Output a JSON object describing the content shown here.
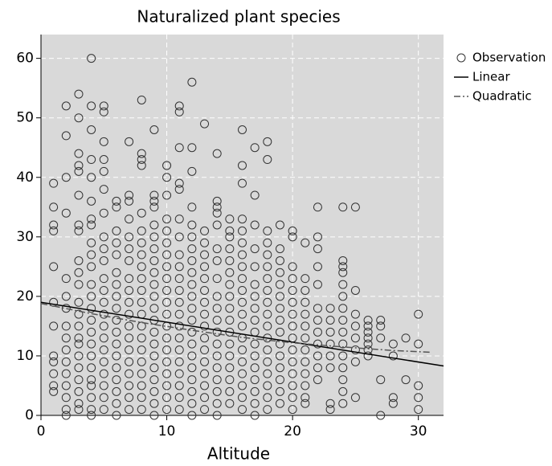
{
  "chart_data": {
    "type": "scatter",
    "title": "Naturalized plant species",
    "xlabel": "Altitude",
    "xlim": [
      0,
      32
    ],
    "ylim": [
      0,
      64
    ],
    "xticks": [
      0,
      10,
      20,
      30
    ],
    "yticks": [
      0,
      10,
      20,
      30,
      40,
      50,
      60
    ],
    "grid": true,
    "legend": "right",
    "background": "#d9d9d9",
    "series": [
      {
        "name": "Observation",
        "type": "scatter",
        "color": "#333333",
        "x": [
          1,
          1,
          1,
          1,
          1,
          1,
          1,
          1,
          1,
          1,
          1,
          1,
          2,
          2,
          2,
          2,
          2,
          2,
          2,
          2,
          2,
          2,
          2,
          2,
          2,
          2,
          2,
          2,
          3,
          3,
          3,
          3,
          3,
          3,
          3,
          3,
          3,
          3,
          3,
          3,
          3,
          3,
          3,
          3,
          3,
          3,
          3,
          3,
          3,
          3,
          4,
          4,
          4,
          4,
          4,
          4,
          4,
          4,
          4,
          4,
          4,
          4,
          4,
          4,
          4,
          4,
          4,
          4,
          4,
          4,
          4,
          4,
          4,
          4,
          5,
          5,
          5,
          5,
          5,
          5,
          5,
          5,
          5,
          5,
          5,
          5,
          5,
          5,
          5,
          5,
          5,
          5,
          5,
          5,
          5,
          5,
          6,
          6,
          6,
          6,
          6,
          6,
          6,
          6,
          6,
          6,
          6,
          6,
          6,
          6,
          6,
          6,
          6,
          6,
          7,
          7,
          7,
          7,
          7,
          7,
          7,
          7,
          7,
          7,
          7,
          7,
          7,
          7,
          7,
          7,
          7,
          7,
          7,
          8,
          8,
          8,
          8,
          8,
          8,
          8,
          8,
          8,
          8,
          8,
          8,
          8,
          8,
          8,
          8,
          8,
          8,
          8,
          8,
          8,
          9,
          9,
          9,
          9,
          9,
          9,
          9,
          9,
          9,
          9,
          9,
          9,
          9,
          9,
          9,
          9,
          9,
          9,
          9,
          9,
          9,
          10,
          10,
          10,
          10,
          10,
          10,
          10,
          10,
          10,
          10,
          10,
          10,
          10,
          10,
          10,
          10,
          10,
          10,
          10,
          10,
          11,
          11,
          11,
          11,
          11,
          11,
          11,
          11,
          11,
          11,
          11,
          11,
          11,
          11,
          11,
          11,
          11,
          11,
          11,
          11,
          11,
          12,
          12,
          12,
          12,
          12,
          12,
          12,
          12,
          12,
          12,
          12,
          12,
          12,
          12,
          12,
          12,
          12,
          12,
          12,
          12,
          12,
          13,
          13,
          13,
          13,
          13,
          13,
          13,
          13,
          13,
          13,
          13,
          13,
          13,
          13,
          13,
          13,
          13,
          14,
          14,
          14,
          14,
          14,
          14,
          14,
          14,
          14,
          14,
          14,
          14,
          14,
          14,
          14,
          14,
          14,
          14,
          14,
          15,
          15,
          15,
          15,
          15,
          15,
          15,
          15,
          15,
          15,
          15,
          15,
          15,
          15,
          15,
          15,
          15,
          16,
          16,
          16,
          16,
          16,
          16,
          16,
          16,
          16,
          16,
          16,
          16,
          16,
          16,
          16,
          16,
          16,
          16,
          16,
          16,
          17,
          17,
          17,
          17,
          17,
          17,
          17,
          17,
          17,
          17,
          17,
          17,
          17,
          17,
          17,
          17,
          17,
          18,
          18,
          18,
          18,
          18,
          18,
          18,
          18,
          18,
          18,
          18,
          18,
          18,
          18,
          18,
          18,
          18,
          18,
          19,
          19,
          19,
          19,
          19,
          19,
          19,
          19,
          19,
          19,
          19,
          19,
          19,
          19,
          19,
          20,
          20,
          20,
          20,
          20,
          20,
          20,
          20,
          20,
          20,
          20,
          20,
          20,
          20,
          20,
          21,
          21,
          21,
          21,
          21,
          21,
          21,
          21,
          21,
          21,
          21,
          21,
          21,
          22,
          22,
          22,
          22,
          22,
          22,
          22,
          22,
          22,
          22,
          22,
          22,
          23,
          23,
          23,
          23,
          23,
          23,
          23,
          23,
          24,
          24,
          24,
          24,
          24,
          24,
          24,
          24,
          24,
          24,
          24,
          24,
          24,
          24,
          24,
          25,
          25,
          25,
          25,
          25,
          25,
          25,
          25,
          26,
          26,
          26,
          26,
          26,
          26,
          26,
          27,
          27,
          27,
          27,
          27,
          28,
          28,
          28,
          28,
          29,
          29,
          30,
          30,
          30,
          30,
          30
        ],
        "values": [
          39,
          35,
          32,
          31,
          25,
          19,
          15,
          10,
          9,
          7,
          5,
          4,
          52,
          47,
          40,
          34,
          23,
          20,
          18,
          15,
          13,
          11,
          9,
          7,
          5,
          3,
          1,
          0,
          54,
          50,
          44,
          42,
          41,
          37,
          32,
          31,
          26,
          24,
          22,
          19,
          17,
          15,
          13,
          12,
          10,
          8,
          6,
          4,
          2,
          1,
          60,
          52,
          48,
          43,
          40,
          36,
          33,
          32,
          29,
          27,
          25,
          22,
          20,
          18,
          16,
          14,
          12,
          10,
          8,
          6,
          5,
          3,
          1,
          0,
          52,
          51,
          46,
          43,
          41,
          38,
          34,
          30,
          28,
          26,
          23,
          21,
          19,
          17,
          15,
          13,
          11,
          9,
          7,
          5,
          3,
          1,
          36,
          35,
          31,
          29,
          27,
          24,
          22,
          20,
          18,
          16,
          14,
          12,
          10,
          8,
          6,
          4,
          2,
          0,
          46,
          37,
          36,
          33,
          30,
          28,
          26,
          23,
          21,
          19,
          17,
          15,
          13,
          11,
          9,
          7,
          5,
          3,
          1,
          53,
          44,
          43,
          42,
          34,
          31,
          29,
          27,
          25,
          23,
          21,
          19,
          17,
          15,
          13,
          11,
          9,
          7,
          5,
          3,
          1,
          48,
          37,
          36,
          35,
          32,
          30,
          28,
          26,
          24,
          22,
          20,
          18,
          16,
          14,
          12,
          10,
          8,
          6,
          4,
          2,
          0,
          42,
          40,
          37,
          33,
          31,
          29,
          27,
          25,
          23,
          21,
          19,
          17,
          15,
          13,
          11,
          9,
          7,
          5,
          3,
          1,
          52,
          51,
          45,
          39,
          38,
          33,
          30,
          27,
          25,
          23,
          21,
          19,
          17,
          15,
          13,
          11,
          9,
          7,
          5,
          3,
          1,
          56,
          45,
          41,
          35,
          32,
          30,
          28,
          26,
          24,
          22,
          20,
          18,
          16,
          14,
          12,
          10,
          8,
          6,
          4,
          2,
          0,
          49,
          31,
          29,
          27,
          25,
          23,
          21,
          19,
          17,
          15,
          13,
          11,
          9,
          7,
          5,
          3,
          1,
          44,
          36,
          35,
          34,
          32,
          28,
          26,
          23,
          20,
          18,
          16,
          14,
          12,
          10,
          8,
          6,
          4,
          2,
          0,
          33,
          31,
          30,
          28,
          26,
          24,
          22,
          20,
          18,
          16,
          14,
          12,
          10,
          8,
          6,
          4,
          2,
          48,
          42,
          39,
          33,
          31,
          29,
          27,
          25,
          23,
          21,
          19,
          17,
          15,
          13,
          11,
          9,
          7,
          5,
          3,
          1,
          45,
          37,
          32,
          28,
          25,
          22,
          20,
          18,
          16,
          14,
          12,
          10,
          8,
          6,
          4,
          2,
          0,
          46,
          43,
          31,
          29,
          27,
          25,
          23,
          21,
          19,
          17,
          15,
          13,
          11,
          9,
          7,
          5,
          3,
          1,
          32,
          28,
          26,
          24,
          22,
          20,
          18,
          16,
          14,
          12,
          10,
          8,
          6,
          4,
          2,
          31,
          30,
          25,
          23,
          21,
          19,
          17,
          15,
          13,
          11,
          9,
          7,
          5,
          3,
          1,
          29,
          23,
          21,
          19,
          17,
          15,
          13,
          11,
          9,
          7,
          5,
          3,
          2,
          35,
          30,
          28,
          25,
          22,
          18,
          16,
          14,
          12,
          10,
          8,
          6,
          18,
          16,
          14,
          12,
          10,
          8,
          2,
          1,
          35,
          26,
          25,
          24,
          22,
          20,
          18,
          16,
          14,
          12,
          10,
          8,
          6,
          4,
          2,
          35,
          21,
          17,
          15,
          13,
          11,
          9,
          3,
          16,
          15,
          14,
          13,
          12,
          11,
          10,
          16,
          15,
          13,
          6,
          0,
          12,
          10,
          3,
          2,
          13,
          6,
          17,
          12,
          5,
          3,
          1
        ]
      },
      {
        "name": "Linear",
        "type": "line",
        "color": "#000000",
        "dash": "solid",
        "x": [
          0,
          32
        ],
        "values": [
          19.0,
          8.3
        ]
      },
      {
        "name": "Quadratic",
        "type": "line",
        "color": "#555555",
        "dash": "dashdot",
        "x": [
          0,
          4,
          8,
          12,
          16,
          20,
          24,
          28,
          31
        ],
        "values": [
          18.8,
          17.1,
          15.6,
          14.3,
          13.1,
          12.2,
          11.5,
          10.9,
          10.6
        ]
      }
    ]
  }
}
